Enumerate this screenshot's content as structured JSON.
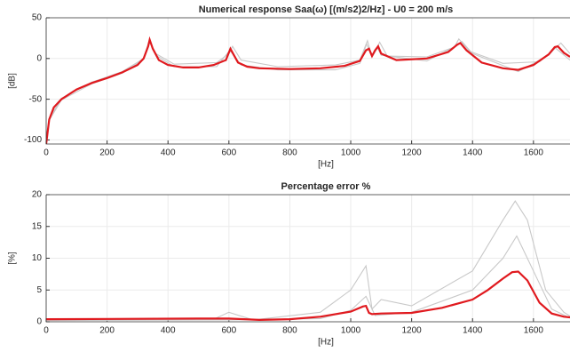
{
  "chart_data": [
    {
      "type": "line",
      "title": "Numerical response Saa(ω) [(m/s2)2/Hz] - U0 = 200 m/s",
      "xlabel": "[Hz]",
      "ylabel": "[dB]",
      "xlim": [
        0,
        1720
      ],
      "xticks": [
        0,
        200,
        400,
        600,
        800,
        1000,
        1200,
        1400,
        1600
      ],
      "ylim": [
        -105,
        50
      ],
      "yticks": [
        -100,
        -50,
        0,
        50
      ],
      "grid": true,
      "series": [
        {
          "color": "#c8c8c8",
          "x": [
            0,
            10,
            50,
            150,
            250,
            320,
            338,
            360,
            420,
            560,
            600,
            612,
            640,
            760,
            950,
            1030,
            1055,
            1068,
            1085,
            1095,
            1120,
            1250,
            1340,
            1355,
            1390,
            1500,
            1620,
            1670,
            1690,
            1720
          ],
          "values": [
            -105,
            -74,
            -49,
            -29,
            -16,
            0,
            22,
            6,
            -7,
            -5,
            6,
            15,
            -2,
            -10,
            -8,
            -2,
            22,
            4,
            12,
            20,
            3,
            2,
            14,
            24,
            9,
            -6,
            -4,
            12,
            19,
            6
          ]
        },
        {
          "color": "#c8c8c8",
          "x": [
            0,
            10,
            50,
            150,
            250,
            320,
            340,
            360,
            420,
            560,
            603,
            615,
            640,
            760,
            950,
            1030,
            1052,
            1070,
            1088,
            1100,
            1250,
            1350,
            1365,
            1400,
            1550,
            1650,
            1672,
            1720
          ],
          "values": [
            -105,
            -76,
            -51,
            -31,
            -18,
            -1,
            21,
            4,
            -10,
            -10,
            10,
            4,
            -8,
            -14,
            -14,
            -6,
            18,
            2,
            13,
            4,
            -3,
            16,
            21,
            6,
            -16,
            4,
            13,
            -2
          ]
        },
        {
          "color": "#e0191e",
          "x": [
            0,
            10,
            25,
            50,
            100,
            150,
            200,
            250,
            300,
            320,
            335,
            340,
            350,
            370,
            400,
            450,
            500,
            550,
            590,
            605,
            615,
            630,
            660,
            700,
            800,
            900,
            980,
            1030,
            1050,
            1060,
            1070,
            1080,
            1090,
            1100,
            1150,
            1250,
            1320,
            1350,
            1360,
            1380,
            1430,
            1500,
            1550,
            1600,
            1650,
            1670,
            1680,
            1700,
            1720
          ],
          "values": [
            -105,
            -75,
            -60,
            -50,
            -38,
            -30,
            -24,
            -17,
            -8,
            0,
            15,
            23,
            12,
            -2,
            -8,
            -11,
            -11,
            -8,
            -2,
            12,
            5,
            -5,
            -10,
            -12,
            -13,
            -12,
            -9,
            -3,
            10,
            12,
            3,
            10,
            15,
            6,
            -2,
            0,
            8,
            17,
            19,
            10,
            -5,
            -12,
            -14,
            -8,
            5,
            14,
            15,
            7,
            2
          ]
        }
      ]
    },
    {
      "type": "line",
      "title": "Percentage error %",
      "xlabel": "[Hz]",
      "ylabel": "[%]",
      "xlim": [
        0,
        1720
      ],
      "xticks": [
        0,
        200,
        400,
        600,
        800,
        1000,
        1200,
        1400,
        1600
      ],
      "ylim": [
        0,
        20
      ],
      "yticks": [
        0,
        5,
        10,
        15,
        20
      ],
      "grid": true,
      "series": [
        {
          "color": "#c8c8c8",
          "x": [
            0,
            550,
            600,
            680,
            900,
            1000,
            1050,
            1070,
            1100,
            1200,
            1400,
            1500,
            1540,
            1580,
            1640,
            1700,
            1720
          ],
          "values": [
            0.3,
            0.4,
            1.5,
            0.3,
            1.5,
            5,
            8.8,
            2,
            3.5,
            2.5,
            8,
            16,
            19,
            16,
            5,
            1.5,
            0.9
          ]
        },
        {
          "color": "#c8c8c8",
          "x": [
            0,
            600,
            900,
            1000,
            1050,
            1080,
            1200,
            1400,
            1500,
            1545,
            1600,
            1660,
            1720
          ],
          "values": [
            0.2,
            0.3,
            0.5,
            1.8,
            4,
            1,
            1.5,
            5,
            10,
            13.5,
            8,
            2,
            0.6
          ]
        },
        {
          "color": "#e0191e",
          "x": [
            0,
            500,
            600,
            700,
            800,
            900,
            1000,
            1040,
            1050,
            1060,
            1070,
            1100,
            1200,
            1300,
            1400,
            1450,
            1500,
            1530,
            1550,
            1580,
            1620,
            1660,
            1700,
            1720
          ],
          "values": [
            0.4,
            0.5,
            0.5,
            0.3,
            0.4,
            0.8,
            1.6,
            2.4,
            2.5,
            1.4,
            1.2,
            1.3,
            1.4,
            2.2,
            3.5,
            5,
            6.8,
            7.8,
            7.9,
            6.5,
            3,
            1.3,
            0.8,
            0.7
          ]
        }
      ]
    }
  ]
}
